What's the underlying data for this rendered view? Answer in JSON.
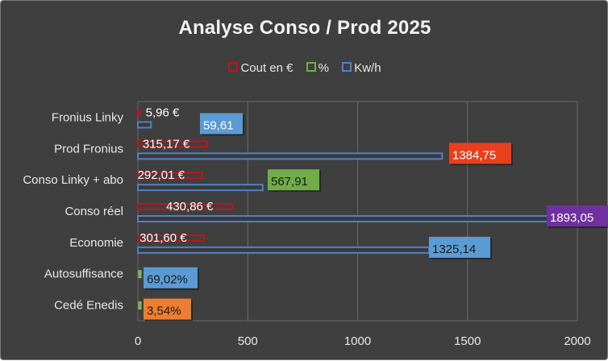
{
  "chart_data": {
    "type": "bar",
    "orientation": "horizontal",
    "title": "Analyse Conso / Prod 2025",
    "xlim": [
      0,
      2000
    ],
    "x_ticks": [
      "0",
      "500",
      "1000",
      "1500",
      "2000"
    ],
    "grid": true,
    "legend_position": "top",
    "categories": [
      "Fronius Linky",
      "Prod Fronius",
      "Conso Linky + abo",
      "Conso réel",
      "Economie",
      "Autosuffisance",
      "Cedé Enedis"
    ],
    "series": [
      {
        "name": "Cout en €",
        "color": "#c0141c",
        "values": [
          5.96,
          315.17,
          292.01,
          430.86,
          301.6,
          null,
          null
        ],
        "labels": [
          "5,96 €",
          "315,17 €",
          "292,01 €",
          "430,86 €",
          "301,60 €",
          "",
          ""
        ]
      },
      {
        "name": "%",
        "color": "#70ad47",
        "values": [
          null,
          null,
          null,
          null,
          null,
          6.902,
          0.354
        ],
        "labels": [
          "",
          "",
          "",
          "",
          "",
          "",
          ""
        ]
      },
      {
        "name": "Kw/h",
        "color": "#2e5fa8",
        "values": [
          59.61,
          1384.75,
          567.91,
          1893.05,
          1325.14,
          null,
          null
        ],
        "labels": [
          "59,61",
          "1384,75",
          "567,91",
          "1893,05",
          "1325,14",
          "69,02%",
          "3,54%"
        ]
      }
    ],
    "label_colors": {
      "Fronius Linky": "#5b9bd5",
      "Prod Fronius": "#e8401c",
      "Conso Linky + abo": "#70ad47",
      "Conso réel": "#7030a0",
      "Economie": "#5b9bd5",
      "Autosuffisance": "#5b9bd5",
      "Cedé Enedis": "#ed7d31"
    }
  }
}
